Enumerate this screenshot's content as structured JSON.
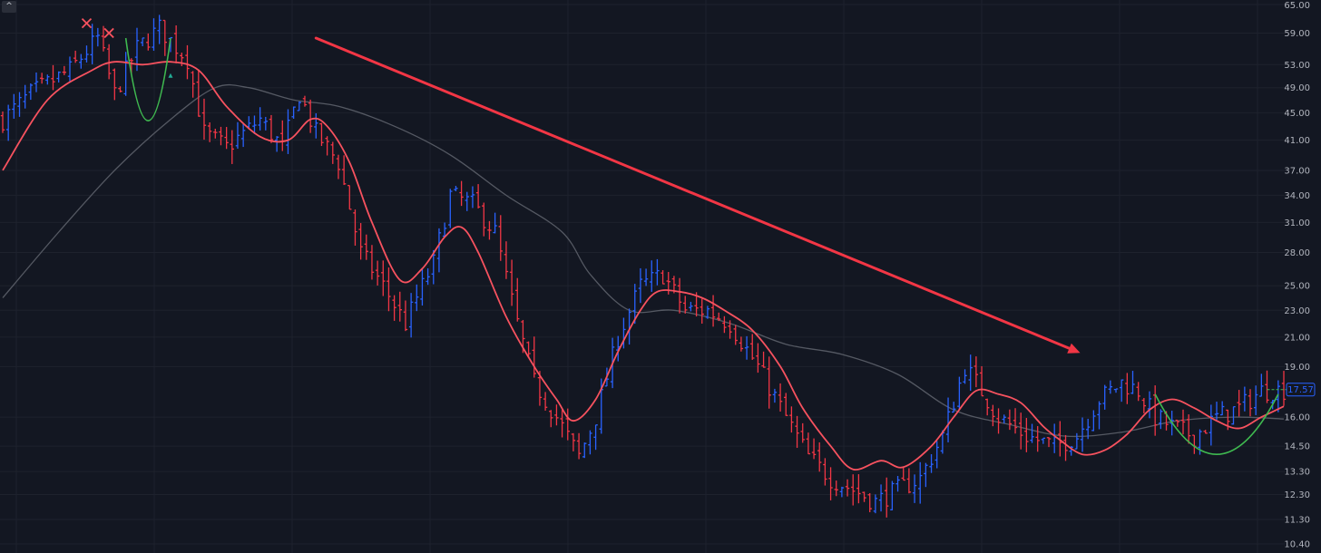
{
  "toolbar": {
    "collapse_icon": "chevron-up-icon",
    "collapse_glyph": "^"
  },
  "colors": {
    "background": "#131722",
    "grid": "#1e222d",
    "up_bar": "#2962ff",
    "down_bar": "#f23645",
    "ema_fast": "#f7525f",
    "ma_slow": "#555963",
    "trend_arrow": "#f23645",
    "cup_curve": "#3fb950",
    "last_price_badge": "#2962ff",
    "marker_x": "#f7525f",
    "marker_triangle": "#22ab94"
  },
  "chart_data": {
    "type": "ohlc-bar",
    "scale": "log",
    "ylim": [
      10.0,
      67.0
    ],
    "y_ticks": [
      65.0,
      59.0,
      53.0,
      49.0,
      45.0,
      41.0,
      37.0,
      34.0,
      31.0,
      28.0,
      25.0,
      23.0,
      21.0,
      19.0,
      16.0,
      14.5,
      13.3,
      12.3,
      11.3,
      10.4
    ],
    "y_tick_labels": [
      "65.00",
      "59.00",
      "53.00",
      "49.00",
      "45.00",
      "41.00",
      "37.00",
      "34.00",
      "31.00",
      "28.00",
      "25.00",
      "23.00",
      "21.00",
      "19.00",
      "16.00",
      "14.50",
      "13.30",
      "12.30",
      "11.30",
      "10.40"
    ],
    "last_price": 17.57,
    "last_price_label": "17.57",
    "bar_count": 230,
    "close_path": [
      [
        0,
        44
      ],
      [
        5,
        48
      ],
      [
        12,
        52
      ],
      [
        17,
        58
      ],
      [
        20,
        48
      ],
      [
        24,
        56
      ],
      [
        28,
        60
      ],
      [
        33,
        54
      ],
      [
        36,
        42
      ],
      [
        40,
        40
      ],
      [
        46,
        44
      ],
      [
        50,
        40
      ],
      [
        53,
        48
      ],
      [
        56,
        42
      ],
      [
        60,
        38
      ],
      [
        64,
        28
      ],
      [
        68,
        25
      ],
      [
        72,
        22
      ],
      [
        74,
        24
      ],
      [
        77,
        27
      ],
      [
        80,
        34
      ],
      [
        84,
        33
      ],
      [
        88,
        30
      ],
      [
        92,
        22
      ],
      [
        95,
        18
      ],
      [
        99,
        16
      ],
      [
        103,
        14
      ],
      [
        106,
        16
      ],
      [
        110,
        21
      ],
      [
        114,
        25
      ],
      [
        118,
        26
      ],
      [
        122,
        23
      ],
      [
        126,
        23
      ],
      [
        130,
        22
      ],
      [
        135,
        19
      ],
      [
        140,
        16
      ],
      [
        144,
        14
      ],
      [
        148,
        13
      ],
      [
        152,
        12.5
      ],
      [
        156,
        12
      ],
      [
        160,
        12.5
      ],
      [
        164,
        13
      ],
      [
        168,
        15
      ],
      [
        172,
        19
      ],
      [
        174,
        18
      ],
      [
        178,
        16
      ],
      [
        183,
        15
      ],
      [
        188,
        14.5
      ],
      [
        192,
        15
      ],
      [
        196,
        17
      ],
      [
        200,
        18
      ],
      [
        203,
        17.5
      ],
      [
        206,
        16
      ],
      [
        209,
        15.5
      ],
      [
        213,
        15
      ],
      [
        217,
        16
      ],
      [
        221,
        16.5
      ],
      [
        225,
        17.5
      ],
      [
        229,
        17.57
      ]
    ],
    "ema_fast": [
      [
        0,
        37
      ],
      [
        8,
        47
      ],
      [
        16,
        52
      ],
      [
        20,
        53.5
      ],
      [
        25,
        53
      ],
      [
        30,
        53.5
      ],
      [
        35,
        52
      ],
      [
        40,
        46
      ],
      [
        46,
        41.5
      ],
      [
        51,
        41
      ],
      [
        55,
        44
      ],
      [
        58,
        43
      ],
      [
        62,
        38
      ],
      [
        66,
        31
      ],
      [
        71,
        25.5
      ],
      [
        75,
        26.5
      ],
      [
        79,
        29.5
      ],
      [
        82,
        30.5
      ],
      [
        85,
        28
      ],
      [
        90,
        22.5
      ],
      [
        95,
        19
      ],
      [
        99,
        17
      ],
      [
        102,
        15.8
      ],
      [
        106,
        17
      ],
      [
        110,
        20
      ],
      [
        114,
        23
      ],
      [
        117,
        24.5
      ],
      [
        121,
        24.5
      ],
      [
        125,
        24
      ],
      [
        129,
        23
      ],
      [
        134,
        21.5
      ],
      [
        139,
        19
      ],
      [
        143,
        16.5
      ],
      [
        148,
        14.5
      ],
      [
        152,
        13.4
      ],
      [
        157,
        13.8
      ],
      [
        161,
        13.5
      ],
      [
        166,
        14.5
      ],
      [
        170,
        16
      ],
      [
        174,
        17.5
      ],
      [
        178,
        17.3
      ],
      [
        182,
        16.8
      ],
      [
        186,
        15.5
      ],
      [
        189,
        14.8
      ],
      [
        193,
        14.1
      ],
      [
        197,
        14.3
      ],
      [
        201,
        15.1
      ],
      [
        205,
        16.4
      ],
      [
        209,
        17.0
      ],
      [
        213,
        16.5
      ],
      [
        217,
        15.8
      ],
      [
        221,
        15.4
      ],
      [
        225,
        16.0
      ],
      [
        229,
        16.6
      ]
    ],
    "ma_slow": [
      [
        0,
        24
      ],
      [
        10,
        30
      ],
      [
        20,
        37
      ],
      [
        30,
        44
      ],
      [
        38,
        49
      ],
      [
        44,
        49
      ],
      [
        52,
        47
      ],
      [
        60,
        46
      ],
      [
        70,
        43
      ],
      [
        80,
        39
      ],
      [
        90,
        34
      ],
      [
        100,
        30
      ],
      [
        105,
        26
      ],
      [
        112,
        23
      ],
      [
        120,
        23
      ],
      [
        130,
        22
      ],
      [
        140,
        20.5
      ],
      [
        150,
        19.8
      ],
      [
        160,
        18.5
      ],
      [
        170,
        16.4
      ],
      [
        180,
        15.6
      ],
      [
        190,
        15
      ],
      [
        200,
        15.2
      ],
      [
        210,
        15.8
      ],
      [
        220,
        16.0
      ],
      [
        229,
        15.9
      ]
    ],
    "annotations": {
      "trend_arrow": {
        "from": [
          56,
          58
        ],
        "to": [
          192,
          20
        ]
      },
      "cup_curves": [
        {
          "bars": [
            22,
            30
          ],
          "low": 43.8,
          "high": 58
        },
        {
          "bars": [
            206,
            228
          ],
          "low": 14.1,
          "high": 17.3
        }
      ],
      "x_markers": [
        [
          15,
          61
        ],
        [
          19,
          59
        ]
      ],
      "triangle_marker": [
        30,
        51
      ]
    }
  }
}
